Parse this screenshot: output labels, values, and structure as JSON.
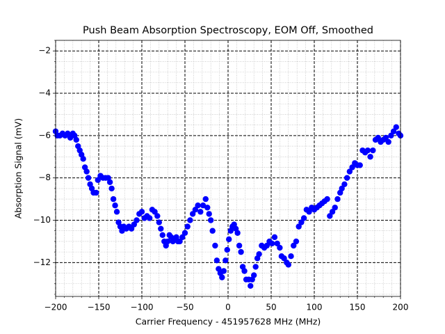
{
  "chart_data": {
    "type": "scatter",
    "title": "Push Beam Absorption Spectroscopy, EOM Off, Smoothed",
    "x_label": "Carrier Frequency - 451957628 MHz (MHz)",
    "y_label": "Absorption Signal (mV)",
    "color": "#0000ff",
    "xlim": [
      -200,
      200
    ],
    "ylim": [
      -13.6,
      -1.5
    ],
    "xticks": [
      {
        "value": -200,
        "label": "−200"
      },
      {
        "value": -150,
        "label": "−150"
      },
      {
        "value": -100,
        "label": "−100"
      },
      {
        "value": -50,
        "label": "−50"
      },
      0,
      50,
      100,
      150,
      200
    ],
    "yticks": [
      {
        "value": -12,
        "label": "−12"
      },
      {
        "value": -10,
        "label": "−10"
      },
      {
        "value": -8,
        "label": "−8"
      },
      {
        "value": -6,
        "label": "−6"
      },
      {
        "value": -4,
        "label": "−4"
      },
      {
        "value": -2,
        "label": "−2"
      }
    ],
    "xminorticks": [
      -190,
      -180,
      -170,
      -160,
      -140,
      -130,
      -120,
      -110,
      -90,
      -80,
      -70,
      -60,
      -40,
      -30,
      -20,
      -10,
      10,
      20,
      30,
      40,
      60,
      70,
      80,
      90,
      110,
      120,
      130,
      140,
      160,
      170,
      180,
      190
    ],
    "yminorticks": [
      -13.5,
      -13,
      -12.5,
      -11.5,
      -11,
      -10.5,
      -9.5,
      -9,
      -8.5,
      -7.5,
      -7,
      -6.5,
      -5.5,
      -5,
      -4.5,
      -3.5,
      -3,
      -2.5,
      -1.5
    ],
    "grid": true,
    "minor_grid": true,
    "x": [
      -200,
      -198,
      -195,
      -192,
      -189,
      -186,
      -183,
      -180,
      -178,
      -176,
      -174,
      -172,
      -170,
      -168,
      -166,
      -164,
      -162,
      -160,
      -158,
      -156,
      -153,
      -151,
      -148,
      -145,
      -142,
      -139,
      -137,
      -135,
      -133,
      -131,
      -129,
      -127,
      -125,
      -123,
      -121,
      -118,
      -115,
      -112,
      -109,
      -106,
      -103,
      -100,
      -97,
      -94,
      -91,
      -88,
      -85,
      -82,
      -80,
      -78,
      -76,
      -74,
      -72,
      -70,
      -68,
      -66,
      -64,
      -62,
      -60,
      -58,
      -56,
      -53,
      -50,
      -47,
      -44,
      -41,
      -38,
      -35,
      -32,
      -29,
      -26,
      -24,
      -22,
      -20,
      -18,
      -15,
      -13,
      -11,
      -9,
      -7,
      -5,
      -3,
      -1,
      1,
      3,
      5,
      7,
      9,
      11,
      13,
      15,
      17,
      19,
      21,
      24,
      26,
      28,
      30,
      32,
      34,
      36,
      39,
      42,
      45,
      48,
      51,
      54,
      57,
      60,
      62,
      65,
      68,
      70,
      73,
      76,
      79,
      82,
      85,
      88,
      91,
      94,
      97,
      100,
      103,
      106,
      109,
      112,
      115,
      118,
      121,
      124,
      127,
      130,
      132,
      135,
      138,
      141,
      144,
      147,
      150,
      153,
      156,
      159,
      162,
      165,
      168,
      171,
      174,
      177,
      180,
      183,
      186,
      189,
      192,
      195,
      198,
      200
    ],
    "values": [
      -5.8,
      -6.0,
      -6.0,
      -5.9,
      -6.0,
      -5.9,
      -6.1,
      -5.9,
      -6.0,
      -6.2,
      -6.5,
      -6.7,
      -6.9,
      -7.1,
      -7.5,
      -7.7,
      -8.0,
      -8.3,
      -8.5,
      -8.7,
      -8.7,
      -8.1,
      -7.9,
      -8.0,
      -8.0,
      -8.0,
      -8.2,
      -8.5,
      -9.0,
      -9.3,
      -9.6,
      -10.1,
      -10.3,
      -10.5,
      -10.3,
      -10.4,
      -10.3,
      -10.4,
      -10.2,
      -10.0,
      -9.7,
      -9.6,
      -9.9,
      -9.8,
      -9.9,
      -9.5,
      -9.6,
      -9.8,
      -10.1,
      -10.4,
      -10.7,
      -11.0,
      -11.2,
      -11.0,
      -10.7,
      -10.8,
      -11.0,
      -10.9,
      -10.8,
      -11.0,
      -11.0,
      -10.8,
      -10.6,
      -10.3,
      -10.0,
      -9.7,
      -9.5,
      -9.3,
      -9.6,
      -9.3,
      -9.0,
      -9.4,
      -9.7,
      -10.0,
      -10.5,
      -11.2,
      -11.9,
      -12.3,
      -12.5,
      -12.7,
      -12.4,
      -11.9,
      -11.4,
      -10.9,
      -10.5,
      -10.3,
      -10.2,
      -10.4,
      -10.6,
      -11.2,
      -11.5,
      -12.2,
      -12.4,
      -12.8,
      -12.8,
      -13.1,
      -12.8,
      -12.6,
      -12.2,
      -11.8,
      -11.6,
      -11.2,
      -11.3,
      -11.2,
      -11.0,
      -11.1,
      -10.8,
      -11.1,
      -11.3,
      -11.7,
      -11.8,
      -12.0,
      -12.1,
      -11.7,
      -11.2,
      -11.0,
      -10.3,
      -10.1,
      -9.9,
      -9.5,
      -9.6,
      -9.4,
      -9.5,
      -9.4,
      -9.3,
      -9.2,
      -9.1,
      -9.0,
      -9.8,
      -9.6,
      -9.4,
      -9.0,
      -8.7,
      -8.5,
      -8.3,
      -8.0,
      -7.7,
      -7.5,
      -7.3,
      -7.4,
      -7.4,
      -6.7,
      -6.8,
      -6.7,
      -7.0,
      -6.7,
      -6.2,
      -6.1,
      -6.3,
      -6.2,
      -6.1,
      -6.3,
      -6.0,
      -5.8,
      -5.6,
      -5.9,
      -6.0
    ]
  }
}
